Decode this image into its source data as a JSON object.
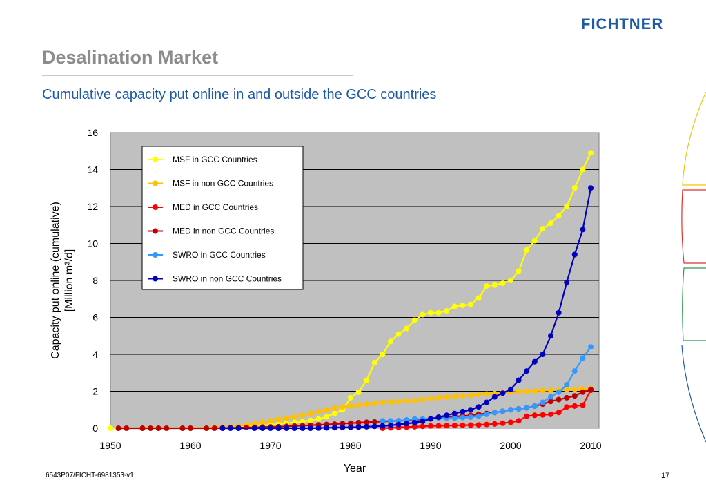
{
  "header": {
    "logo": "FICHTNER"
  },
  "slide": {
    "title": "Desalination Market",
    "subtitle": "Cumulative capacity put online in and outside the GCC countries"
  },
  "footer": {
    "code": "6543P07/FICHT-6981353-v1",
    "page": "17"
  },
  "colors": {
    "accent": "#1e5aa8",
    "title": "#8c8c8c",
    "plot_bg": "#c0c0c0"
  },
  "chart_data": {
    "type": "line",
    "xlabel": "Year",
    "ylabel_line1": "Capacity put online (cumulative)",
    "ylabel_line2": "[Million m³/d]",
    "xlim": [
      1950,
      2010
    ],
    "ylim": [
      0,
      16
    ],
    "x_ticks": [
      "1950",
      "1960",
      "1970",
      "1980",
      "1990",
      "2000",
      "2010"
    ],
    "y_ticks": [
      "0",
      "2",
      "4",
      "6",
      "8",
      "10",
      "12",
      "14",
      "16"
    ],
    "grid": true,
    "legend_position": "top-left",
    "series": [
      {
        "name": "MSF in GCC Countries",
        "color": "#ffff00",
        "x": [
          1950,
          1951,
          1952,
          1954,
          1955,
          1956,
          1957,
          1959,
          1960,
          1962,
          1963,
          1964,
          1965,
          1966,
          1967,
          1968,
          1969,
          1970,
          1971,
          1972,
          1973,
          1974,
          1975,
          1976,
          1977,
          1978,
          1979,
          1980,
          1981,
          1982,
          1983,
          1984,
          1985,
          1986,
          1987,
          1988,
          1989,
          1990,
          1991,
          1992,
          1993,
          1994,
          1995,
          1996,
          1997,
          1998,
          1999,
          2000,
          2001,
          2002,
          2003,
          2004,
          2005,
          2006,
          2007,
          2008,
          2009,
          2010
        ],
        "y": [
          0,
          0,
          0,
          0,
          0,
          0,
          0,
          0,
          0,
          0.02,
          0.03,
          0.04,
          0.05,
          0.07,
          0.09,
          0.12,
          0.15,
          0.18,
          0.22,
          0.27,
          0.32,
          0.36,
          0.42,
          0.5,
          0.62,
          0.8,
          1.0,
          1.65,
          1.95,
          2.6,
          3.55,
          4.0,
          4.7,
          5.1,
          5.4,
          5.85,
          6.15,
          6.25,
          6.25,
          6.35,
          6.6,
          6.65,
          6.7,
          7.05,
          7.7,
          7.75,
          7.85,
          8.0,
          8.5,
          9.65,
          10.15,
          10.8,
          11.1,
          11.5,
          12.0,
          13.0,
          14.0,
          14.9
        ]
      },
      {
        "name": "MSF in non GCC Countries",
        "color": "#ffc000",
        "x": [
          1960,
          1962,
          1963,
          1964,
          1965,
          1966,
          1967,
          1968,
          1969,
          1970,
          1971,
          1972,
          1973,
          1974,
          1975,
          1976,
          1977,
          1978,
          1979,
          1980,
          1981,
          1982,
          1983,
          1984,
          1985,
          1986,
          1987,
          1988,
          1989,
          1990,
          1991,
          1992,
          1993,
          1994,
          1995,
          1996,
          1997,
          1998,
          1999,
          2000,
          2001,
          2002,
          2003,
          2004,
          2005,
          2006,
          2007,
          2008,
          2009,
          2010
        ],
        "y": [
          0,
          0.02,
          0.04,
          0.06,
          0.08,
          0.12,
          0.18,
          0.25,
          0.32,
          0.4,
          0.48,
          0.55,
          0.62,
          0.7,
          0.8,
          0.9,
          1.0,
          1.08,
          1.15,
          1.2,
          1.25,
          1.3,
          1.35,
          1.4,
          1.42,
          1.45,
          1.48,
          1.5,
          1.55,
          1.6,
          1.65,
          1.68,
          1.72,
          1.75,
          1.78,
          1.82,
          1.85,
          1.88,
          1.92,
          1.95,
          1.98,
          2.0,
          2.02,
          2.04,
          2.05,
          2.07,
          2.08,
          2.1,
          2.12,
          2.15
        ]
      },
      {
        "name": "MED in GCC Countries",
        "color": "#ff0000",
        "x": [
          1984,
          1985,
          1986,
          1987,
          1988,
          1989,
          1990,
          1991,
          1992,
          1993,
          1994,
          1995,
          1996,
          1997,
          1998,
          1999,
          2000,
          2001,
          2002,
          2003,
          2004,
          2005,
          2006,
          2007,
          2008,
          2009,
          2010
        ],
        "y": [
          0,
          0.02,
          0.04,
          0.06,
          0.08,
          0.1,
          0.12,
          0.13,
          0.14,
          0.15,
          0.16,
          0.17,
          0.18,
          0.2,
          0.23,
          0.27,
          0.32,
          0.4,
          0.65,
          0.7,
          0.72,
          0.75,
          0.85,
          1.15,
          1.2,
          1.25,
          2.05
        ]
      },
      {
        "name": "MED in non GCC Countries",
        "color": "#c00000",
        "x": [
          1951,
          1952,
          1954,
          1955,
          1956,
          1957,
          1959,
          1960,
          1962,
          1963,
          1964,
          1965,
          1966,
          1967,
          1968,
          1969,
          1970,
          1971,
          1972,
          1973,
          1974,
          1975,
          1976,
          1977,
          1978,
          1979,
          1980,
          1981,
          1982,
          1983,
          1984,
          1985,
          1986,
          1987,
          1988,
          1989,
          1990,
          1991,
          1992,
          1993,
          1994,
          1995,
          1996,
          1997,
          1998,
          1999,
          2000,
          2001,
          2002,
          2003,
          2004,
          2005,
          2006,
          2007,
          2008,
          2009,
          2010
        ],
        "y": [
          0,
          0,
          0,
          0,
          0,
          0,
          0,
          0,
          0,
          0,
          0.01,
          0.02,
          0.03,
          0.04,
          0.05,
          0.06,
          0.07,
          0.08,
          0.1,
          0.12,
          0.14,
          0.16,
          0.18,
          0.2,
          0.22,
          0.25,
          0.27,
          0.3,
          0.32,
          0.34,
          0.36,
          0.38,
          0.4,
          0.42,
          0.45,
          0.48,
          0.52,
          0.56,
          0.6,
          0.63,
          0.66,
          0.7,
          0.75,
          0.8,
          0.85,
          0.92,
          1.0,
          1.05,
          1.1,
          1.2,
          1.3,
          1.45,
          1.55,
          1.65,
          1.75,
          1.95,
          2.1
        ]
      },
      {
        "name": "SWRO in GCC Countries",
        "color": "#3399ff",
        "x": [
          1984,
          1985,
          1986,
          1987,
          1988,
          1989,
          1990,
          1991,
          1992,
          1993,
          1994,
          1995,
          1996,
          1997,
          1998,
          1999,
          2000,
          2001,
          2002,
          2003,
          2004,
          2005,
          2006,
          2007,
          2008,
          2009,
          2010
        ],
        "y": [
          0.4,
          0.4,
          0.4,
          0.45,
          0.5,
          0.5,
          0.52,
          0.55,
          0.55,
          0.55,
          0.58,
          0.6,
          0.65,
          0.75,
          0.85,
          0.92,
          1.0,
          1.05,
          1.1,
          1.2,
          1.4,
          1.7,
          1.95,
          2.35,
          3.1,
          3.8,
          4.4
        ]
      },
      {
        "name": "SWRO in non GCC Countries",
        "color": "#0000c0",
        "x": [
          1964,
          1965,
          1966,
          1968,
          1969,
          1970,
          1971,
          1972,
          1973,
          1974,
          1975,
          1976,
          1977,
          1978,
          1979,
          1980,
          1981,
          1982,
          1983,
          1984,
          1985,
          1986,
          1987,
          1988,
          1989,
          1990,
          1991,
          1992,
          1993,
          1994,
          1995,
          1996,
          1997,
          1998,
          1999,
          2000,
          2001,
          2002,
          2003,
          2004,
          2005,
          2006,
          2007,
          2008,
          2009,
          2010
        ],
        "y": [
          0,
          0,
          0,
          0,
          0,
          0,
          0,
          0,
          0,
          0,
          0,
          0.01,
          0.02,
          0.03,
          0.04,
          0.05,
          0.06,
          0.08,
          0.1,
          0.12,
          0.15,
          0.2,
          0.25,
          0.3,
          0.38,
          0.5,
          0.6,
          0.7,
          0.8,
          0.9,
          1.0,
          1.15,
          1.4,
          1.7,
          1.9,
          2.1,
          2.6,
          3.1,
          3.6,
          4.0,
          5.0,
          6.25,
          7.9,
          9.4,
          10.75,
          13.0
        ]
      }
    ]
  }
}
